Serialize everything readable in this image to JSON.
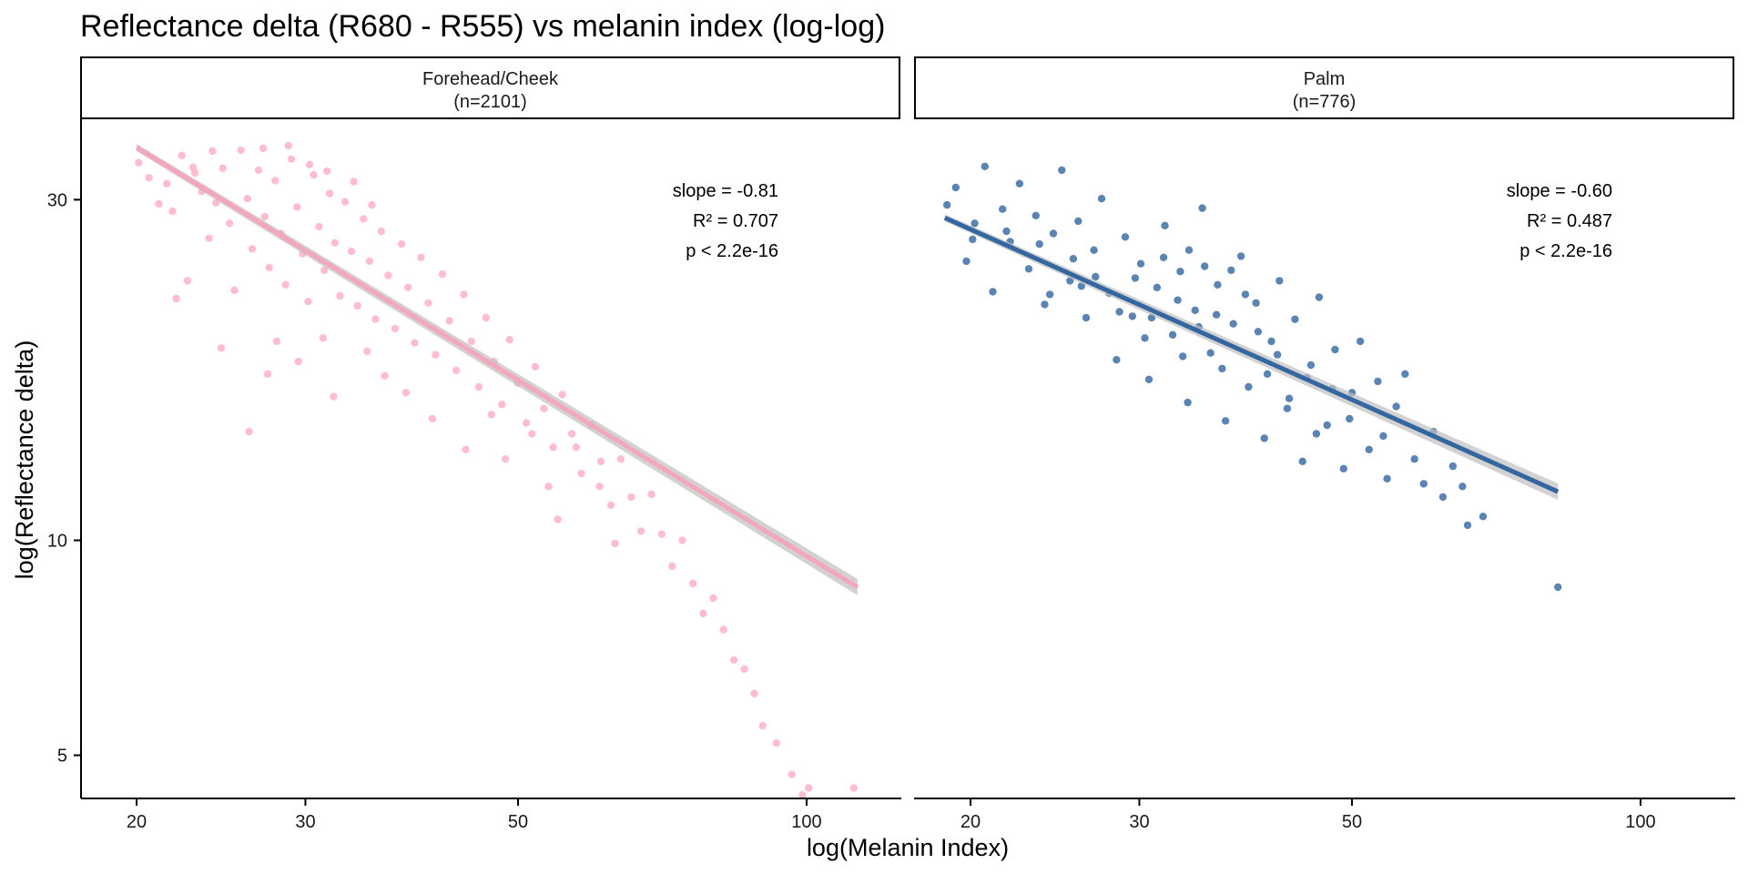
{
  "chart_data": {
    "type": "scatter",
    "title": "Reflectance delta (R680 - R555) vs melanin index (log-log)",
    "xlabel": "log(Melanin Index)",
    "ylabel": "log(Reflectance delta)",
    "x_scale": "log",
    "y_scale": "log",
    "xlim": [
      17.5,
      125
    ],
    "ylim": [
      4.35,
      39
    ],
    "x_ticks": [
      20,
      30,
      50,
      100
    ],
    "y_ticks": [
      5,
      10,
      30
    ],
    "grid": false,
    "panels": [
      {
        "label": "Forehead/Cheek",
        "n_label": "(n=2101)",
        "color": "#FFB3C6",
        "line_color": "#F4A6BB",
        "fit": {
          "x": [
            20,
            113
          ],
          "y": [
            35.5,
            8.6
          ]
        },
        "stats": {
          "slope": "slope = -0.81",
          "r2": "R² = 0.707",
          "p": "p < 2.2e-16"
        },
        "points": [
          [
            20.1,
            33.8
          ],
          [
            21.5,
            31.6
          ],
          [
            21.8,
            28.9
          ],
          [
            22.3,
            34.6
          ],
          [
            22.0,
            21.8
          ],
          [
            22.6,
            23.1
          ],
          [
            23.0,
            32.7
          ],
          [
            23.4,
            30.8
          ],
          [
            23.8,
            26.5
          ],
          [
            24.2,
            29.7
          ],
          [
            24.6,
            33.2
          ],
          [
            25.0,
            27.8
          ],
          [
            25.3,
            22.4
          ],
          [
            25.7,
            35.2
          ],
          [
            26.1,
            30.1
          ],
          [
            26.4,
            25.6
          ],
          [
            26.8,
            33.0
          ],
          [
            27.2,
            28.4
          ],
          [
            27.5,
            24.1
          ],
          [
            27.9,
            31.9
          ],
          [
            28.3,
            26.9
          ],
          [
            28.6,
            22.8
          ],
          [
            29.0,
            34.2
          ],
          [
            29.4,
            29.3
          ],
          [
            29.8,
            25.2
          ],
          [
            30.2,
            21.6
          ],
          [
            30.6,
            32.5
          ],
          [
            31.0,
            27.5
          ],
          [
            31.4,
            23.9
          ],
          [
            31.8,
            30.6
          ],
          [
            32.2,
            26.1
          ],
          [
            32.6,
            22.0
          ],
          [
            33.0,
            29.8
          ],
          [
            33.5,
            25.4
          ],
          [
            34.0,
            21.3
          ],
          [
            34.5,
            28.2
          ],
          [
            35.0,
            24.6
          ],
          [
            35.5,
            20.4
          ],
          [
            36.0,
            27.1
          ],
          [
            36.6,
            23.5
          ],
          [
            37.2,
            19.8
          ],
          [
            37.8,
            26.0
          ],
          [
            38.4,
            22.6
          ],
          [
            39.0,
            18.9
          ],
          [
            39.6,
            24.9
          ],
          [
            40.3,
            21.5
          ],
          [
            41.0,
            18.2
          ],
          [
            41.7,
            23.6
          ],
          [
            42.4,
            20.3
          ],
          [
            43.1,
            17.3
          ],
          [
            43.9,
            22.1
          ],
          [
            44.7,
            19.0
          ],
          [
            45.5,
            16.4
          ],
          [
            46.3,
            20.5
          ],
          [
            47.2,
            17.8
          ],
          [
            48.1,
            15.5
          ],
          [
            49.0,
            19.1
          ],
          [
            50.0,
            16.6
          ],
          [
            51.0,
            14.6
          ],
          [
            52.1,
            17.5
          ],
          [
            53.2,
            15.3
          ],
          [
            54.4,
            13.5
          ],
          [
            55.6,
            16.0
          ],
          [
            56.9,
            14.1
          ],
          [
            58.2,
            12.4
          ],
          [
            59.6,
            14.5
          ],
          [
            61.0,
            12.9
          ],
          [
            62.5,
            11.2
          ],
          [
            64.0,
            13.0
          ],
          [
            65.6,
            11.5
          ],
          [
            67.2,
            10.3
          ],
          [
            68.9,
            11.6
          ],
          [
            70.6,
            10.2
          ],
          [
            72.4,
            9.2
          ],
          [
            74.2,
            10.0
          ],
          [
            76.1,
            8.7
          ],
          [
            78.0,
            7.9
          ],
          [
            79.9,
            8.3
          ],
          [
            81.9,
            7.5
          ],
          [
            84.0,
            6.8
          ],
          [
            86.1,
            6.6
          ],
          [
            88.2,
            6.1
          ],
          [
            90.0,
            5.5
          ],
          [
            93.0,
            5.2
          ],
          [
            96.5,
            4.7
          ],
          [
            99.0,
            4.4
          ],
          [
            100.5,
            4.5
          ],
          [
            112.0,
            4.5
          ],
          [
            26.2,
            14.2
          ],
          [
            32.1,
            15.9
          ],
          [
            27.4,
            17.1
          ],
          [
            34.8,
            18.4
          ],
          [
            38.2,
            16.1
          ],
          [
            40.7,
            14.8
          ],
          [
            44.1,
            13.4
          ],
          [
            29.5,
            17.8
          ],
          [
            36.3,
            17.0
          ],
          [
            31.3,
            19.2
          ],
          [
            28.0,
            19.0
          ],
          [
            24.5,
            18.6
          ],
          [
            46.9,
            15.0
          ],
          [
            51.7,
            14.1
          ],
          [
            57.5,
            13.5
          ],
          [
            60.8,
            11.9
          ],
          [
            55.0,
            10.7
          ],
          [
            63.1,
            9.9
          ],
          [
            53.8,
            11.9
          ],
          [
            48.5,
            13.0
          ],
          [
            35.2,
            29.5
          ],
          [
            33.7,
            31.8
          ],
          [
            31.6,
            32.9
          ],
          [
            30.3,
            33.6
          ],
          [
            28.8,
            35.7
          ],
          [
            27.1,
            35.4
          ],
          [
            24.0,
            35.1
          ],
          [
            22.9,
            33.3
          ],
          [
            21.1,
            29.6
          ],
          [
            20.6,
            32.2
          ]
        ]
      },
      {
        "label": "Palm",
        "n_label": "(n=776)",
        "color": "#3E6FA6",
        "line_color": "#3466A0",
        "fit": {
          "x": [
            18.8,
            82
          ],
          "y": [
            28.3,
            11.7
          ]
        },
        "stats": {
          "slope": "slope = -0.60",
          "r2": "R² = 0.487",
          "p": "p < 2.2e-16"
        },
        "points": [
          [
            18.9,
            29.5
          ],
          [
            19.3,
            31.2
          ],
          [
            19.8,
            24.6
          ],
          [
            20.2,
            27.8
          ],
          [
            20.7,
            33.4
          ],
          [
            21.1,
            22.3
          ],
          [
            21.6,
            29.1
          ],
          [
            22.0,
            26.2
          ],
          [
            22.5,
            31.6
          ],
          [
            23.0,
            24.0
          ],
          [
            23.4,
            28.5
          ],
          [
            23.9,
            21.4
          ],
          [
            24.4,
            26.9
          ],
          [
            24.9,
            33.0
          ],
          [
            25.4,
            23.1
          ],
          [
            25.9,
            28.0
          ],
          [
            26.4,
            20.5
          ],
          [
            26.9,
            25.5
          ],
          [
            27.4,
            30.1
          ],
          [
            27.9,
            22.2
          ],
          [
            28.4,
            17.9
          ],
          [
            29.0,
            26.6
          ],
          [
            29.5,
            20.6
          ],
          [
            30.1,
            24.4
          ],
          [
            30.7,
            16.8
          ],
          [
            31.3,
            22.6
          ],
          [
            31.9,
            27.6
          ],
          [
            32.5,
            19.4
          ],
          [
            33.1,
            23.8
          ],
          [
            33.7,
            15.6
          ],
          [
            34.3,
            21.0
          ],
          [
            34.9,
            29.2
          ],
          [
            35.6,
            18.3
          ],
          [
            36.2,
            22.8
          ],
          [
            36.9,
            14.7
          ],
          [
            37.6,
            20.1
          ],
          [
            38.3,
            25.0
          ],
          [
            39.0,
            16.4
          ],
          [
            39.7,
            21.5
          ],
          [
            40.5,
            13.9
          ],
          [
            41.2,
            19.0
          ],
          [
            42.0,
            23.1
          ],
          [
            42.8,
            15.3
          ],
          [
            43.6,
            20.4
          ],
          [
            44.4,
            12.9
          ],
          [
            45.3,
            17.6
          ],
          [
            46.2,
            21.9
          ],
          [
            47.1,
            14.5
          ],
          [
            48.0,
            18.5
          ],
          [
            49.0,
            12.6
          ],
          [
            50.0,
            16.1
          ],
          [
            51.0,
            19.0
          ],
          [
            52.1,
            13.4
          ],
          [
            53.2,
            16.7
          ],
          [
            54.4,
            12.2
          ],
          [
            55.6,
            15.4
          ],
          [
            56.8,
            17.1
          ],
          [
            58.1,
            13.0
          ],
          [
            59.4,
            12.0
          ],
          [
            60.8,
            14.2
          ],
          [
            62.2,
            11.5
          ],
          [
            63.7,
            12.7
          ],
          [
            65.2,
            11.9
          ],
          [
            66.0,
            10.5
          ],
          [
            68.5,
            10.8
          ],
          [
            82.0,
            8.6
          ],
          [
            33.8,
            25.5
          ],
          [
            35.1,
            24.2
          ],
          [
            31.8,
            24.9
          ],
          [
            37.4,
            23.9
          ],
          [
            29.7,
            23.3
          ],
          [
            27.0,
            23.4
          ],
          [
            38.7,
            22.1
          ],
          [
            32.9,
            21.7
          ],
          [
            36.1,
            20.7
          ],
          [
            34.6,
            19.9
          ],
          [
            30.4,
            19.2
          ],
          [
            39.9,
            19.6
          ],
          [
            41.8,
            18.2
          ],
          [
            28.6,
            20.9
          ],
          [
            26.1,
            22.7
          ],
          [
            24.2,
            22.1
          ],
          [
            44.9,
            16.9
          ],
          [
            47.7,
            16.3
          ],
          [
            43.0,
            15.8
          ],
          [
            45.9,
            14.1
          ],
          [
            49.7,
            14.8
          ],
          [
            53.9,
            14.0
          ],
          [
            40.8,
            17.1
          ],
          [
            36.6,
            17.4
          ],
          [
            33.3,
            18.1
          ],
          [
            30.9,
            20.5
          ],
          [
            25.6,
            24.8
          ],
          [
            23.6,
            26.0
          ],
          [
            21.8,
            27.1
          ],
          [
            20.1,
            26.4
          ]
        ]
      }
    ]
  }
}
